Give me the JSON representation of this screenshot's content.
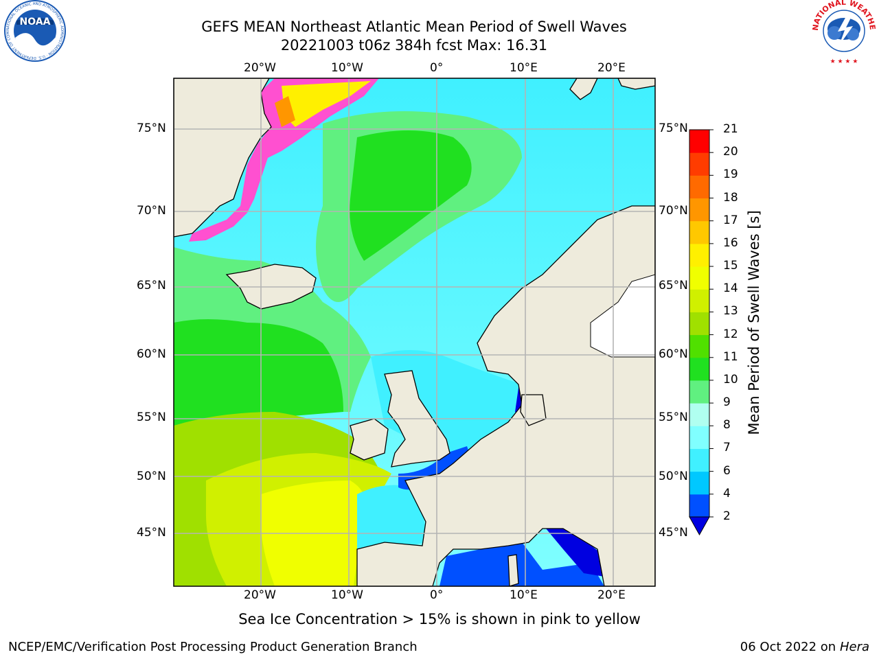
{
  "header": {
    "title": "GEFS MEAN Northeast Atlantic Mean Period of Swell Waves",
    "subtitle": "20221003 t06z 384h fcst   Max: 16.31"
  },
  "logos": {
    "noaa_text": "NOAA",
    "noaa_ring_text": "NATIONAL OCEANIC AND ATMOSPHERIC ADMINISTRATION · U.S. DEPARTMENT OF COMMERCE",
    "nws_ring_text": "NATIONAL WEATHER SERVICE"
  },
  "axes": {
    "top_lon_labels": [
      "20°W",
      "10°W",
      "0°",
      "10°E",
      "20°E"
    ],
    "bottom_lon_labels": [
      "20°W",
      "10°W",
      "0°",
      "10°E",
      "20°E"
    ],
    "lat_labels": [
      "75°N",
      "70°N",
      "65°N",
      "60°N",
      "55°N",
      "50°N",
      "45°N"
    ]
  },
  "colorbar": {
    "title": "Mean Period of Swell Waves [s]",
    "levels": [
      "2",
      "4",
      "6",
      "7",
      "8",
      "9",
      "10",
      "11",
      "12",
      "13",
      "14",
      "15",
      "16",
      "17",
      "18",
      "19",
      "20",
      "21"
    ],
    "colors": [
      "#0050ff",
      "#00c8ff",
      "#40f0ff",
      "#80ffff",
      "#b0fff0",
      "#60f080",
      "#20e020",
      "#50e000",
      "#a0e000",
      "#d0f000",
      "#f0ff00",
      "#fff000",
      "#ffc800",
      "#ff9600",
      "#ff6a00",
      "#ff3c00",
      "#ff0000"
    ],
    "under_color": "#0000e0"
  },
  "legend_note": "Sea Ice Concentration > 15% is shown in pink to yellow",
  "footer": {
    "left": "NCEP/EMC/Verification Post Processing Product Generation Branch",
    "date": "06 Oct 2022 on ",
    "machine": "Hera"
  },
  "colors": {
    "land": "#eeebdc",
    "grid": "#b4b4b4",
    "noaa_blue": "#1a5ab4",
    "nws_red": "#e0141e"
  }
}
